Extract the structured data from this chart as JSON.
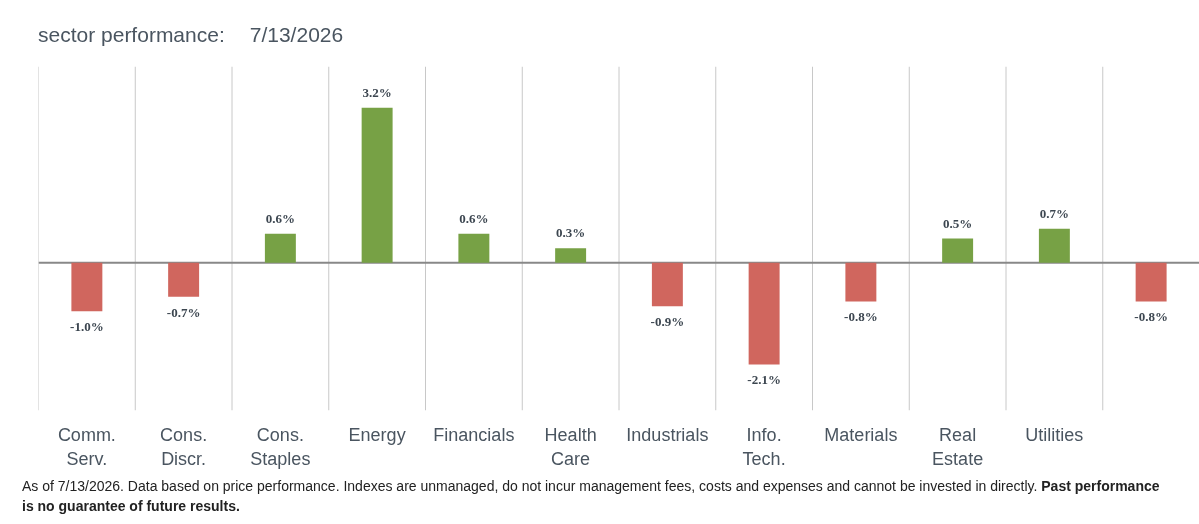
{
  "chart_data": {
    "type": "bar",
    "title": "sector performance:",
    "subtitle": "7/13/2026",
    "categories": [
      "Comm. Serv.",
      "Cons. Discr.",
      "Cons. Staples",
      "Energy",
      "Financials",
      "Health Care",
      "Industrials",
      "Info. Tech.",
      "Materials",
      "Real Estate",
      "Utilities",
      null
    ],
    "values": [
      -1.0,
      -0.7,
      0.6,
      3.2,
      0.6,
      0.3,
      -0.9,
      -2.1,
      -0.8,
      0.5,
      0.7,
      -0.8
    ],
    "colors": [
      "#d0665e",
      "#d0665e",
      "#77a145",
      "#77a145",
      "#77a145",
      "#77a145",
      "#d0665e",
      "#d0665e",
      "#d0665e",
      "#77a145",
      "#77a145",
      "#d0665e"
    ],
    "value_labels": [
      "-1.0%",
      "-0.7%",
      "0.6%",
      "3.2%",
      "0.6%",
      "0.3%",
      "-0.9%",
      "-2.1%",
      "-0.8%",
      "0.5%",
      "0.7%",
      "-0.8%"
    ],
    "ylim": [
      -3.05,
      4.05
    ],
    "grid": "x",
    "annotations": [
      "As of 7/13/2026. Data based on price performance. Indexes are unmanaged, do not incur management fees, costs and expenses and cannot be invested in directly.",
      "Past performance is no guarantee of future results."
    ]
  }
}
